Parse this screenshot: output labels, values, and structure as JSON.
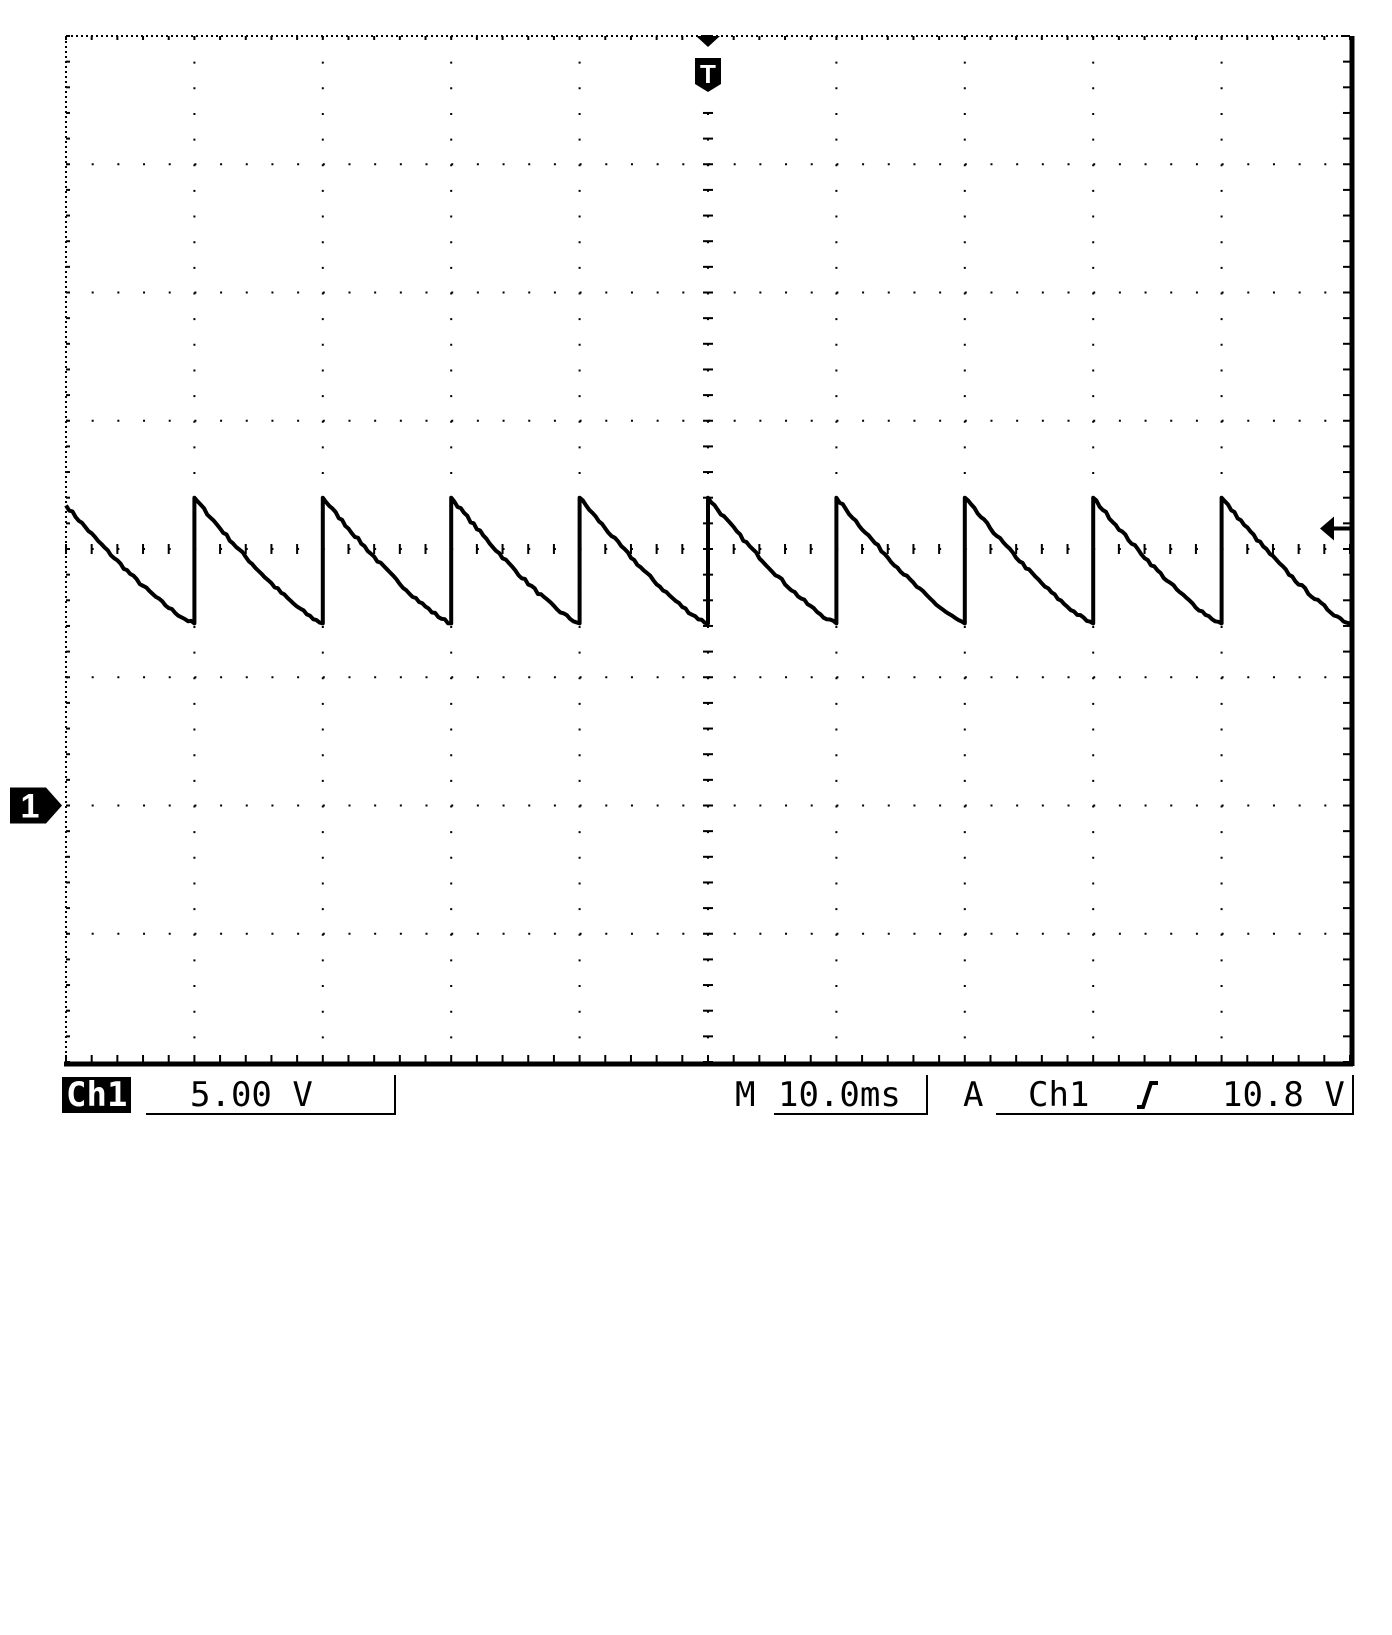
{
  "chart_data": {
    "type": "line",
    "title": "",
    "xlabel": "",
    "ylabel": "",
    "divisions": {
      "x": 10,
      "y": 8
    },
    "xlim_ms": [
      -50,
      50
    ],
    "ylim_div": [
      -4,
      4
    ],
    "channel_ground_level_div": -2,
    "trigger_position_ms": 0,
    "trigger_level_V": 10.8,
    "grid": true,
    "series": [
      {
        "waveform": "sawtooth",
        "period_ms": 10,
        "rise_times_ms": [
          -40,
          -30,
          -20,
          -10,
          0,
          10,
          20,
          30,
          40
        ],
        "peak_V": 12.0,
        "trough_V": 7.1,
        "points": [
          {
            "x_ms": -50,
            "y_V": 11.7
          },
          {
            "x_ms": -40,
            "y_V": 7.1
          },
          {
            "x_ms": -40,
            "y_V": 12.0
          },
          {
            "x_ms": -30,
            "y_V": 7.1
          },
          {
            "x_ms": -30,
            "y_V": 12.0
          },
          {
            "x_ms": -20,
            "y_V": 7.1
          },
          {
            "x_ms": -20,
            "y_V": 12.0
          },
          {
            "x_ms": -10,
            "y_V": 7.1
          },
          {
            "x_ms": -10,
            "y_V": 12.0
          },
          {
            "x_ms": 0,
            "y_V": 7.1
          },
          {
            "x_ms": 0,
            "y_V": 12.0
          },
          {
            "x_ms": 10,
            "y_V": 7.1
          },
          {
            "x_ms": 10,
            "y_V": 12.0
          },
          {
            "x_ms": 20,
            "y_V": 7.1
          },
          {
            "x_ms": 20,
            "y_V": 12.0
          },
          {
            "x_ms": 30,
            "y_V": 7.1
          },
          {
            "x_ms": 30,
            "y_V": 12.0
          },
          {
            "x_ms": 40,
            "y_V": 7.1
          },
          {
            "x_ms": 40,
            "y_V": 12.0
          },
          {
            "x_ms": 50,
            "y_V": 7.1
          }
        ]
      }
    ]
  },
  "markers": {
    "trigger_label": "T",
    "channel_label": "1",
    "trigger_level_arrow": "left-arrow-icon"
  },
  "readout": {
    "channel": "Ch1",
    "volts_per_div": "5.00 V",
    "timebase_prefix": "M",
    "timebase": "10.0ms",
    "trigger_mode": "A",
    "trigger_source": "Ch1",
    "trigger_slope_icon": "rising-edge-icon",
    "trigger_level": "10.8 V"
  },
  "colors": {
    "trace": "#000000",
    "grid": "#000000",
    "background": "#ffffff"
  }
}
